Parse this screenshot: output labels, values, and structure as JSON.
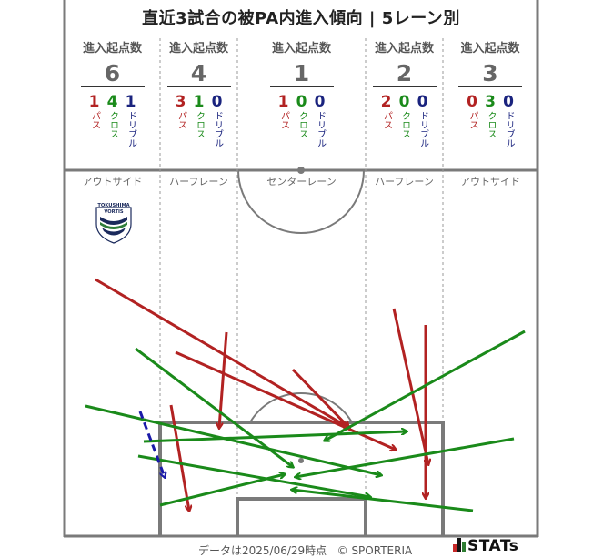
{
  "title": "直近3試合の被PA内進入傾向 | 5レーン別",
  "lanes": [
    {
      "header": "進入起点数",
      "total": "6",
      "pass": "1",
      "cross": "4",
      "dribble": "1",
      "name": "アウトサイド"
    },
    {
      "header": "進入起点数",
      "total": "4",
      "pass": "3",
      "cross": "1",
      "dribble": "0",
      "name": "ハーフレーン"
    },
    {
      "header": "進入起点数",
      "total": "1",
      "pass": "1",
      "cross": "0",
      "dribble": "0",
      "name": "センターレーン"
    },
    {
      "header": "進入起点数",
      "total": "2",
      "pass": "2",
      "cross": "0",
      "dribble": "0",
      "name": "ハーフレーン"
    },
    {
      "header": "進入起点数",
      "total": "3",
      "pass": "0",
      "cross": "3",
      "dribble": "0",
      "name": "アウトサイド"
    }
  ],
  "labels": {
    "pass": "パス",
    "cross": "クロス",
    "dribble": "ドリブル"
  },
  "team_logo": {
    "line1": "TOKUSHIMA",
    "line2": "VORTIS"
  },
  "footer": {
    "updated": "データは2025/06/29時点",
    "copyright": "© SPORTERIA"
  },
  "brand": "STATs",
  "colors": {
    "pass": "#b22222",
    "cross": "#1a8a1a",
    "dribble": "#1a1aa8",
    "pitch_line": "#7a7a7a",
    "lane_line": "#9a9a9a"
  }
}
